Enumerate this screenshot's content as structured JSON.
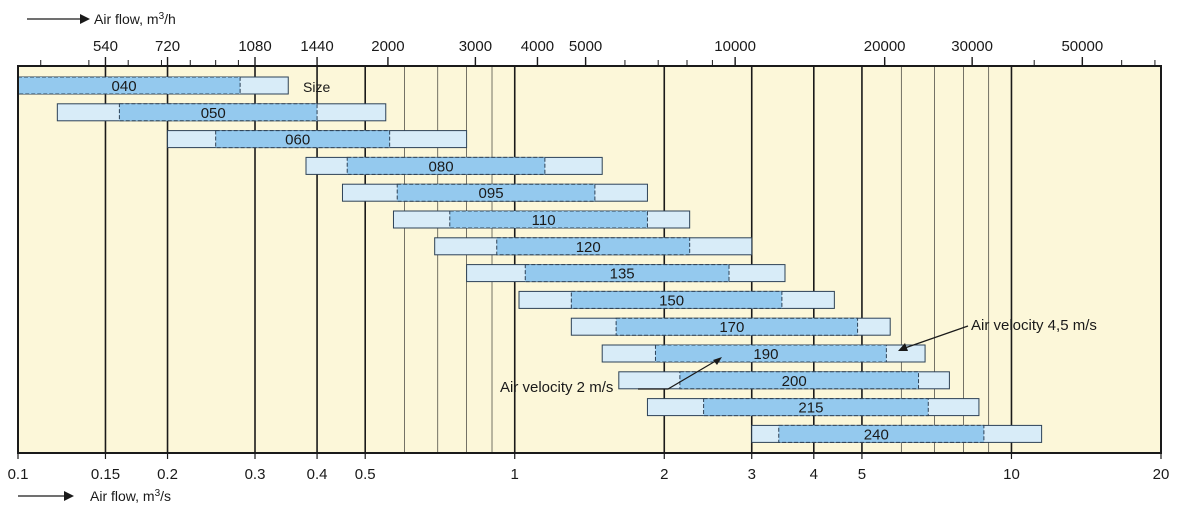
{
  "chart_data": {
    "type": "bar",
    "title": "",
    "top_axis_label_prefix": "Air flow, m",
    "top_axis_label_sup": "3",
    "top_axis_label_suffix": "/h",
    "bottom_axis_label_prefix": "Air flow, m",
    "bottom_axis_label_sup": "3",
    "bottom_axis_label_suffix": "/s",
    "x_scale": "log",
    "xlim": [
      0.1,
      20
    ],
    "bottom_ticks": [
      {
        "value": 0.1,
        "label": "0.1"
      },
      {
        "value": 0.15,
        "label": "0.15"
      },
      {
        "value": 0.2,
        "label": "0.2"
      },
      {
        "value": 0.3,
        "label": "0.3"
      },
      {
        "value": 0.4,
        "label": "0.4"
      },
      {
        "value": 0.5,
        "label": "0.5"
      },
      {
        "value": 1,
        "label": "1"
      },
      {
        "value": 2,
        "label": "2"
      },
      {
        "value": 3,
        "label": "3"
      },
      {
        "value": 4,
        "label": "4"
      },
      {
        "value": 5,
        "label": "5"
      },
      {
        "value": 10,
        "label": "10"
      },
      {
        "value": 20,
        "label": "20"
      }
    ],
    "top_ticks": [
      {
        "value": 540,
        "label": "540"
      },
      {
        "value": 720,
        "label": "720"
      },
      {
        "value": 1080,
        "label": "1080"
      },
      {
        "value": 1440,
        "label": "1440"
      },
      {
        "value": 2000,
        "label": "2000"
      },
      {
        "value": 3000,
        "label": "3000"
      },
      {
        "value": 4000,
        "label": "4000"
      },
      {
        "value": 5000,
        "label": "5000"
      },
      {
        "value": 10000,
        "label": "10000"
      },
      {
        "value": 20000,
        "label": "20000"
      },
      {
        "value": 30000,
        "label": "30000"
      },
      {
        "value": 50000,
        "label": "50000"
      }
    ],
    "size_label": "Size",
    "series": [
      {
        "name": "Size",
        "values": [
          "040",
          "050",
          "060",
          "080",
          "095",
          "110",
          "120",
          "135",
          "150",
          "170",
          "190",
          "200",
          "215",
          "240"
        ]
      }
    ],
    "sizes": [
      {
        "size": "040",
        "range_min": 0.1,
        "range_max": 0.35,
        "v2": 0.28,
        "v45": null
      },
      {
        "size": "050",
        "range_min": 0.12,
        "range_max": 0.55,
        "v2": 0.16,
        "v45": 0.4
      },
      {
        "size": "060",
        "range_min": 0.2,
        "range_max": 0.8,
        "v2": 0.25,
        "v45": 0.56
      },
      {
        "size": "080",
        "range_min": 0.38,
        "range_max": 1.5,
        "v2": 0.46,
        "v45": 1.15
      },
      {
        "size": "095",
        "range_min": 0.45,
        "range_max": 1.85,
        "v2": 0.58,
        "v45": 1.45
      },
      {
        "size": "110",
        "range_min": 0.57,
        "range_max": 2.25,
        "v2": 0.74,
        "v45": 1.85
      },
      {
        "size": "120",
        "range_min": 0.69,
        "range_max": 3.0,
        "v2": 0.92,
        "v45": 2.25
      },
      {
        "size": "135",
        "range_min": 0.8,
        "range_max": 3.5,
        "v2": 1.05,
        "v45": 2.7
      },
      {
        "size": "150",
        "range_min": 1.02,
        "range_max": 4.4,
        "v2": 1.3,
        "v45": 3.45
      },
      {
        "size": "170",
        "range_min": 1.3,
        "range_max": 5.7,
        "v2": 1.6,
        "v45": 4.9
      },
      {
        "size": "190",
        "range_min": 1.5,
        "range_max": 6.7,
        "v2": 1.92,
        "v45": 5.6
      },
      {
        "size": "200",
        "range_min": 1.62,
        "range_max": 7.5,
        "v2": 2.15,
        "v45": 6.5
      },
      {
        "size": "215",
        "range_min": 1.85,
        "range_max": 8.6,
        "v2": 2.4,
        "v45": 6.8
      },
      {
        "size": "240",
        "range_min": 3.0,
        "range_max": 11.5,
        "v2": 3.4,
        "v45": 8.8
      }
    ],
    "annotations": [
      {
        "text": "Air velocity 4,5 m/s"
      },
      {
        "text": "Air velocity 2 m/s"
      }
    ],
    "grid": true,
    "colors": {
      "background": "#fcf7d9",
      "range_bar": "#d8ecf8",
      "velocity_bar": "#94c9ee",
      "bar_stroke": "#2d4257"
    }
  }
}
